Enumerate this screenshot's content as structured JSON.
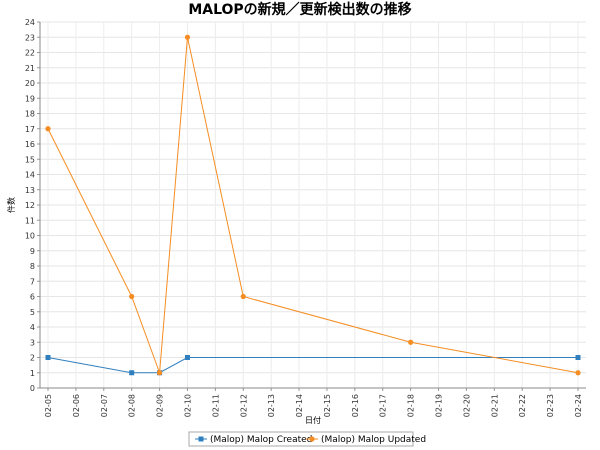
{
  "chart_data": {
    "type": "line",
    "title": "MALOPの新規／更新検出数の推移",
    "xlabel": "日付",
    "ylabel": "件数",
    "categories": [
      "02-05",
      "02-06",
      "02-07",
      "02-08",
      "02-09",
      "02-10",
      "02-11",
      "02-12",
      "02-13",
      "02-14",
      "02-15",
      "02-16",
      "02-17",
      "02-18",
      "02-19",
      "02-20",
      "02-21",
      "02-22",
      "02-23",
      "02-24"
    ],
    "ylim": [
      0,
      24
    ],
    "yticks": [
      0,
      1,
      2,
      3,
      4,
      5,
      6,
      7,
      8,
      9,
      10,
      11,
      12,
      13,
      14,
      15,
      16,
      17,
      18,
      19,
      20,
      21,
      22,
      23,
      24
    ],
    "grid": true,
    "legend_position": "bottom",
    "series": [
      {
        "name": "(Malop) Malop Created",
        "color": "#2f7fbf",
        "marker": "square",
        "points": [
          {
            "x": "02-05",
            "y": 2
          },
          {
            "x": "02-08",
            "y": 1
          },
          {
            "x": "02-09",
            "y": 1
          },
          {
            "x": "02-10",
            "y": 2
          },
          {
            "x": "02-24",
            "y": 2
          }
        ]
      },
      {
        "name": "(Malop) Malop Updated",
        "color": "#f58d22",
        "marker": "circle",
        "points": [
          {
            "x": "02-05",
            "y": 17
          },
          {
            "x": "02-08",
            "y": 6
          },
          {
            "x": "02-09",
            "y": 1
          },
          {
            "x": "02-10",
            "y": 23
          },
          {
            "x": "02-12",
            "y": 6
          },
          {
            "x": "02-18",
            "y": 3
          },
          {
            "x": "02-24",
            "y": 1
          }
        ]
      }
    ]
  }
}
